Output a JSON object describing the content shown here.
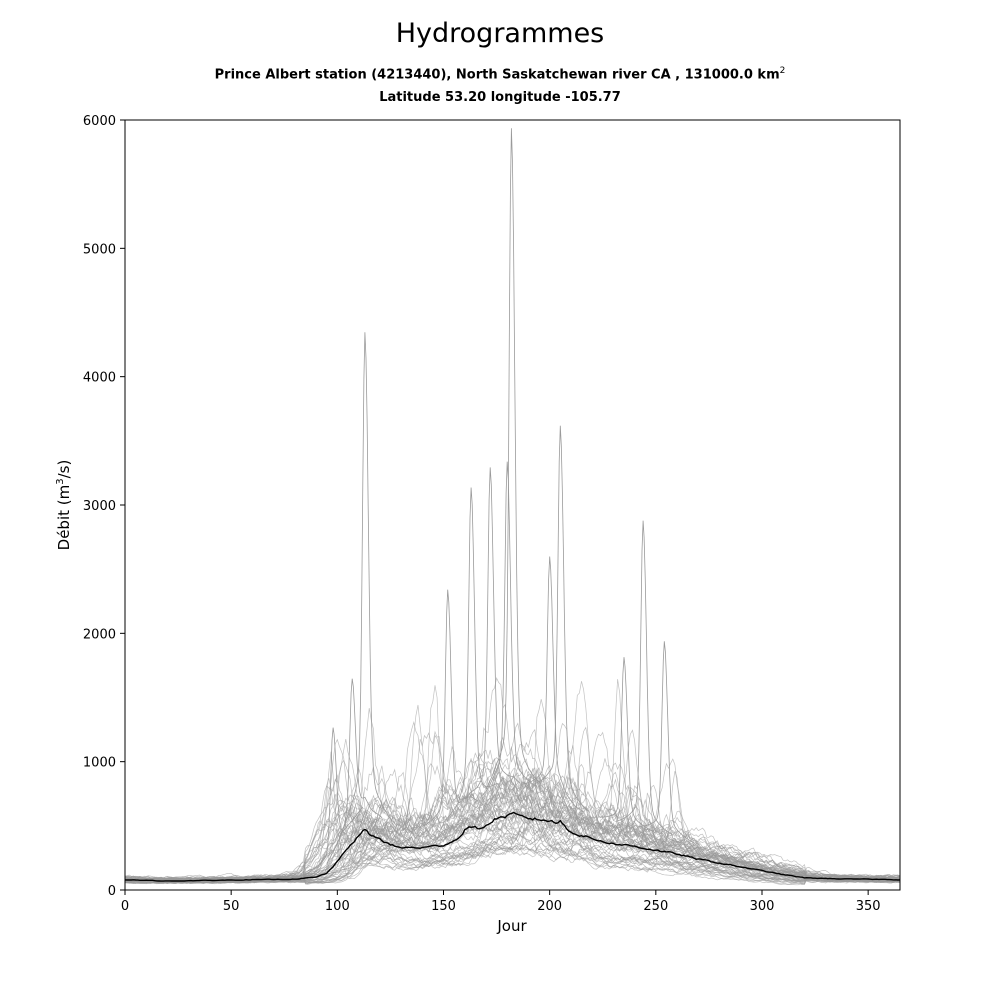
{
  "chart_data": {
    "type": "line",
    "title": "Hydrogrammes",
    "subtitle_line1": "Prince Albert station (4213440), North Saskatchewan river CA , 131000.0 km",
    "subtitle_line1_sup": "2",
    "subtitle_line2": "Latitude 53.20 longitude -105.77",
    "xlabel": "Jour",
    "ylabel_prefix": "Débit (m",
    "ylabel_sup": "3",
    "ylabel_suffix": "/s)",
    "xlim": [
      0,
      365
    ],
    "ylim": [
      0,
      6000
    ],
    "xticks": [
      "0",
      "50",
      "100",
      "150",
      "200",
      "250",
      "300",
      "350"
    ],
    "yticks": [
      "0",
      "1000",
      "2000",
      "3000",
      "4000",
      "5000",
      "6000"
    ],
    "grid": false,
    "colors": {
      "years": "#9a9a9a",
      "mean": "#000000"
    },
    "series_count_years": 60,
    "mean_series": {
      "x": [
        0,
        20,
        40,
        60,
        80,
        90,
        95,
        100,
        105,
        110,
        113,
        116,
        120,
        125,
        130,
        140,
        150,
        157,
        160,
        163,
        166,
        170,
        175,
        180,
        183,
        186,
        190,
        195,
        200,
        203,
        205,
        208,
        212,
        220,
        230,
        240,
        250,
        260,
        270,
        280,
        290,
        300,
        310,
        320,
        330,
        340,
        350,
        365
      ],
      "y": [
        80,
        70,
        75,
        80,
        85,
        100,
        130,
        220,
        330,
        420,
        470,
        420,
        400,
        350,
        330,
        330,
        350,
        400,
        470,
        490,
        480,
        500,
        560,
        575,
        590,
        570,
        560,
        550,
        540,
        520,
        540,
        480,
        440,
        400,
        360,
        340,
        310,
        280,
        240,
        210,
        180,
        150,
        120,
        95,
        90,
        85,
        85,
        80
      ]
    },
    "spikes": [
      {
        "x": 113,
        "y": 3880
      },
      {
        "x": 182,
        "y": 5300
      },
      {
        "x": 205,
        "y": 3230
      },
      {
        "x": 180,
        "y": 2980
      },
      {
        "x": 172,
        "y": 2940
      },
      {
        "x": 163,
        "y": 2800
      },
      {
        "x": 244,
        "y": 2570
      },
      {
        "x": 200,
        "y": 2320
      },
      {
        "x": 152,
        "y": 2090
      },
      {
        "x": 254,
        "y": 1730
      },
      {
        "x": 235,
        "y": 1620
      },
      {
        "x": 107,
        "y": 1470
      },
      {
        "x": 98,
        "y": 1130
      }
    ]
  }
}
